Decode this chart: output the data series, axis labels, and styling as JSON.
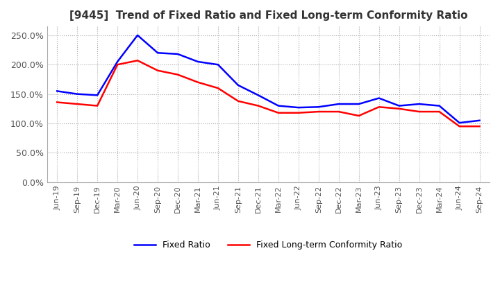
{
  "title": "[9445]  Trend of Fixed Ratio and Fixed Long-term Conformity Ratio",
  "x_labels": [
    "Jun-19",
    "Sep-19",
    "Dec-19",
    "Mar-20",
    "Jun-20",
    "Sep-20",
    "Dec-20",
    "Mar-21",
    "Jun-21",
    "Sep-21",
    "Dec-21",
    "Mar-22",
    "Jun-22",
    "Sep-22",
    "Dec-22",
    "Mar-23",
    "Jun-23",
    "Sep-23",
    "Dec-23",
    "Mar-24",
    "Jun-24",
    "Sep-24"
  ],
  "fixed_ratio": [
    155,
    150,
    148,
    205,
    250,
    220,
    218,
    205,
    200,
    165,
    148,
    130,
    127,
    128,
    133,
    133,
    143,
    130,
    133,
    130,
    101,
    105
  ],
  "fixed_lt_ratio": [
    136,
    133,
    130,
    200,
    207,
    190,
    183,
    170,
    160,
    138,
    130,
    118,
    118,
    120,
    120,
    113,
    128,
    125,
    120,
    120,
    95,
    95
  ],
  "fixed_ratio_color": "#0000FF",
  "fixed_lt_ratio_color": "#FF0000",
  "grid_color": "#AAAAAA",
  "background_color": "#FFFFFF",
  "title_fontsize": 11,
  "ylim": [
    0,
    265
  ],
  "yticks": [
    0,
    50,
    100,
    150,
    200,
    250
  ],
  "ytick_labels": [
    "0.0%",
    "50.0%",
    "100.0%",
    "150.0%",
    "200.0%",
    "250.0%"
  ],
  "legend_labels": [
    "Fixed Ratio",
    "Fixed Long-term Conformity Ratio"
  ]
}
